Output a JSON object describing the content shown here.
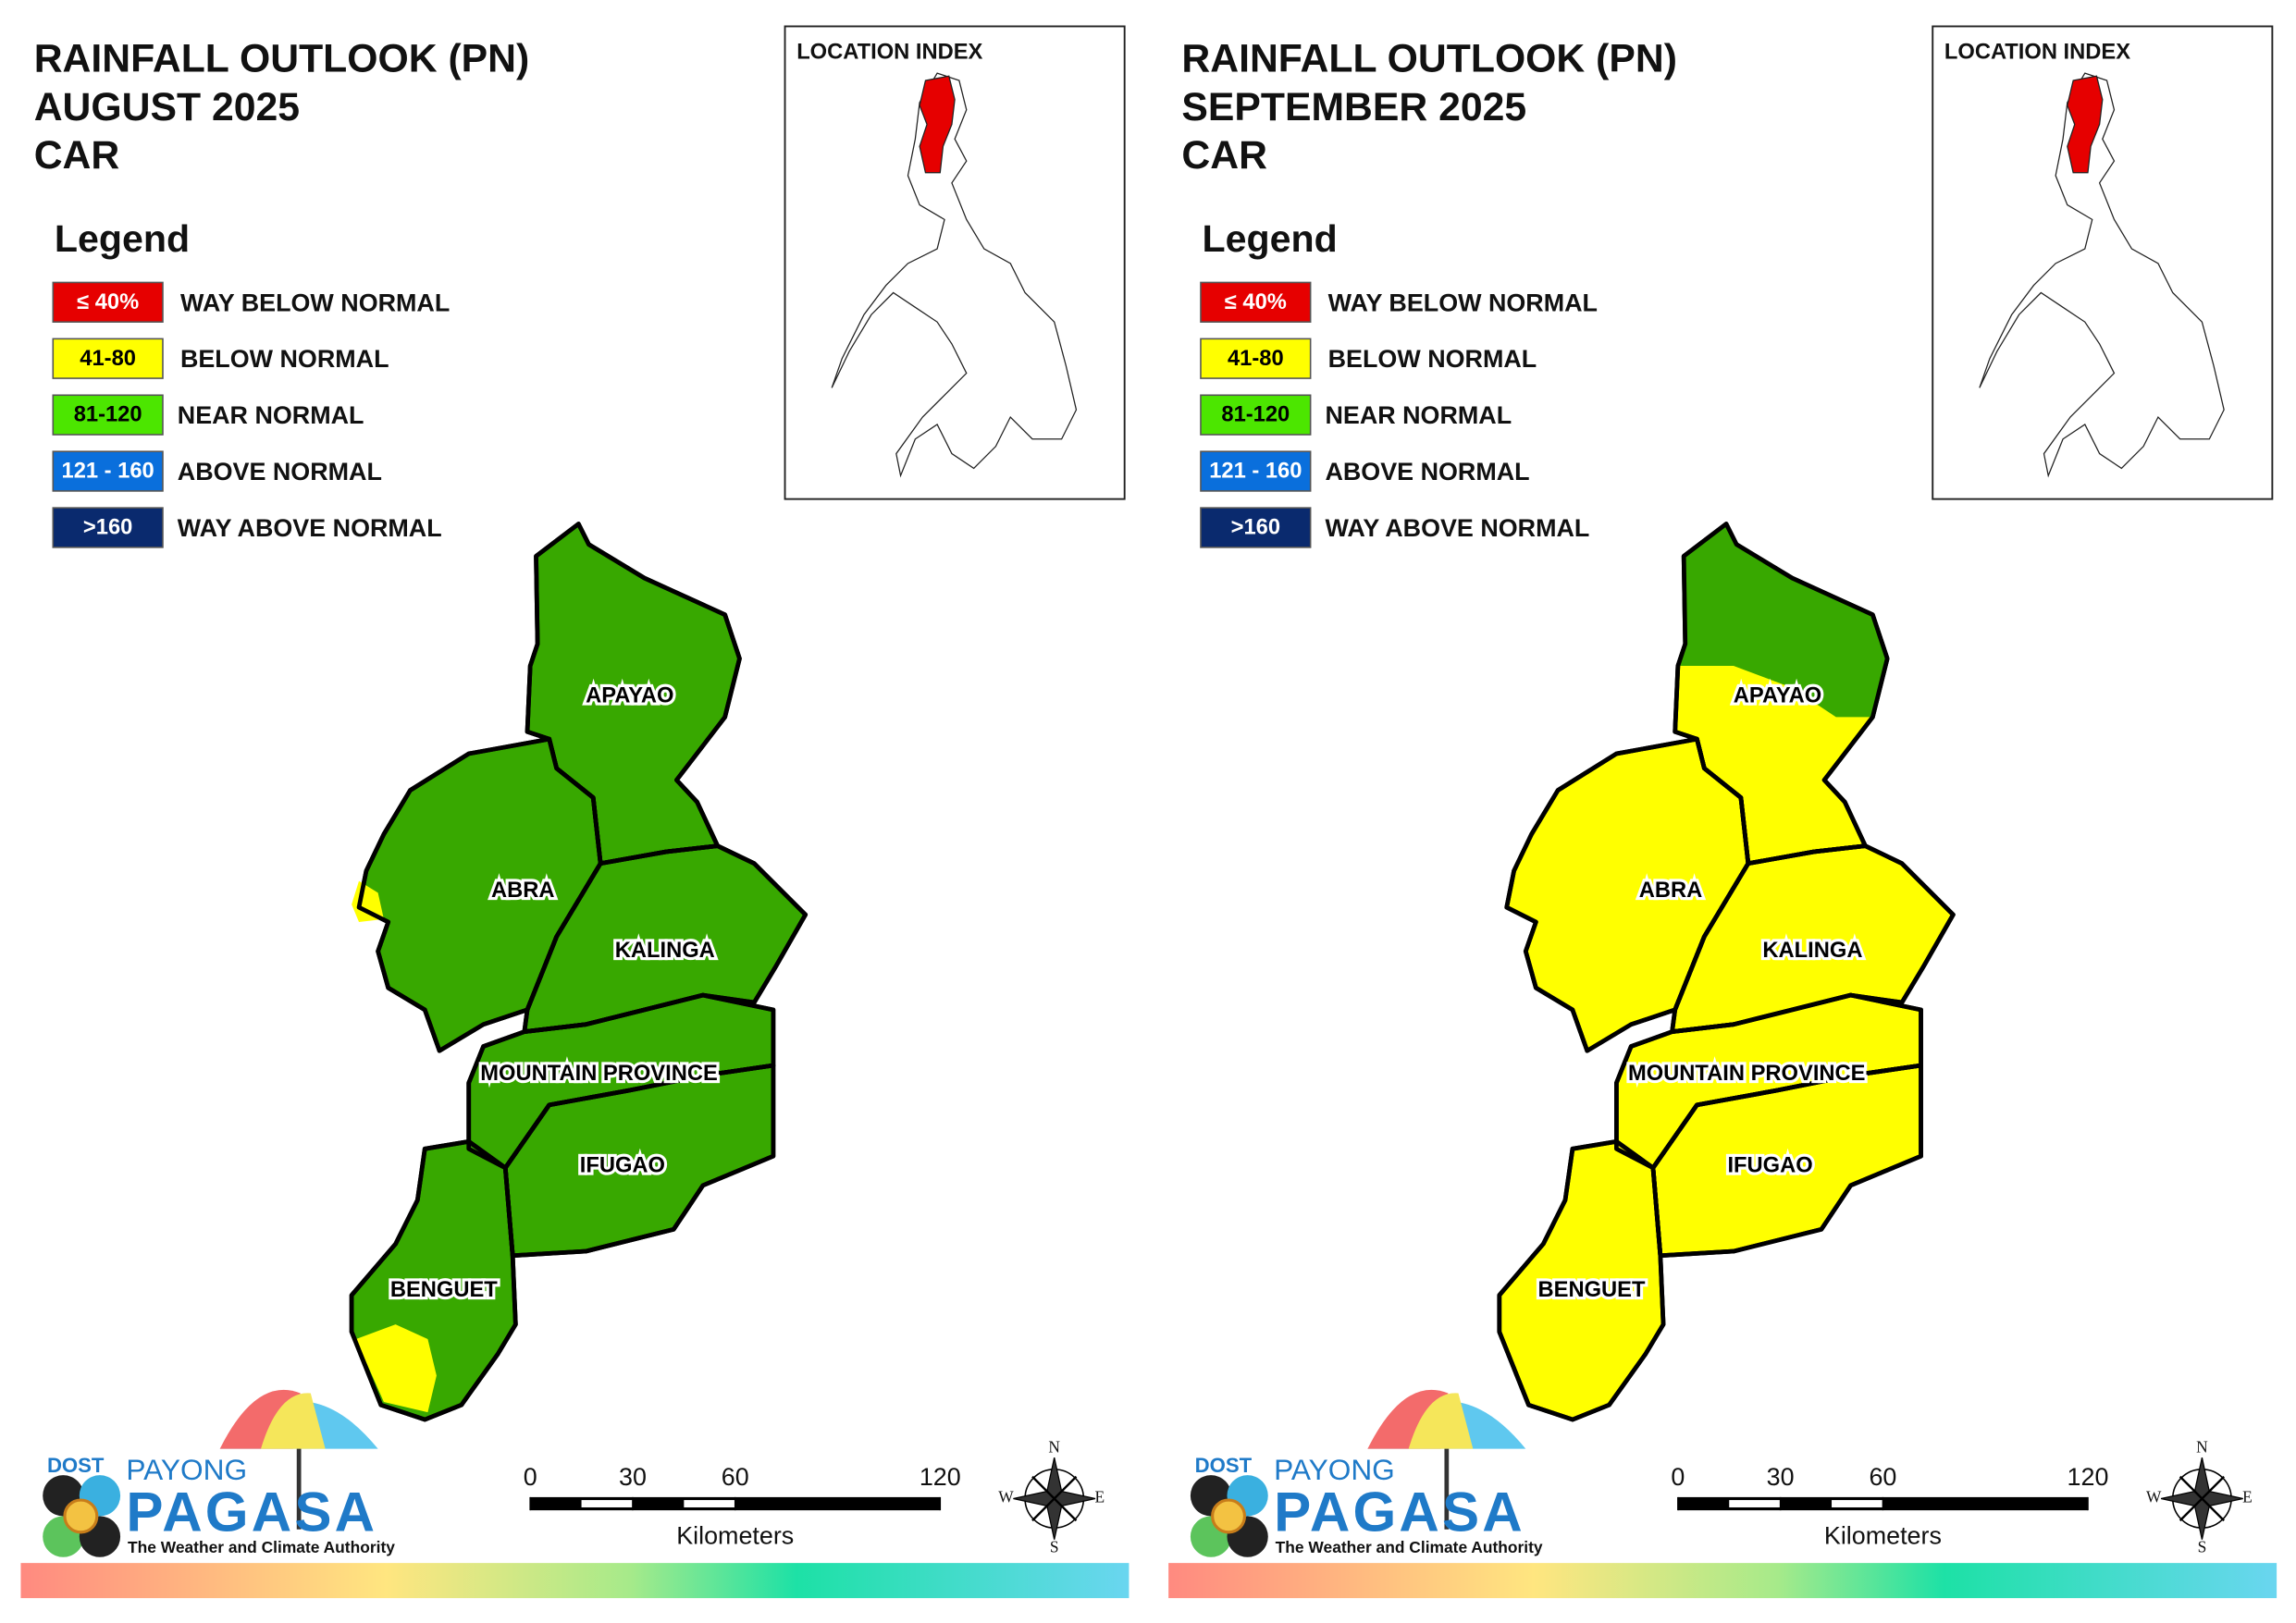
{
  "panels": [
    {
      "title_lines": [
        "RAINFALL OUTLOOK (PN)",
        "AUGUST 2025",
        "CAR"
      ],
      "legend": {
        "title": "Legend",
        "items": [
          {
            "range": "≤ 40%",
            "label": "WAY BELOW NORMAL",
            "color": "#e60000"
          },
          {
            "range": "41-80",
            "label": "BELOW NORMAL",
            "color": "#ffff00"
          },
          {
            "range": "81-120",
            "label": "NEAR NORMAL",
            "color": "#4ce600"
          },
          {
            "range": "121 - 160",
            "label": "ABOVE NORMAL",
            "color": "#0a6fdc"
          },
          {
            "range": ">160",
            "label": "WAY ABOVE NORMAL",
            "color": "#0a2a6e"
          }
        ]
      },
      "location_index": "LOCATION INDEX",
      "provinces": [
        {
          "name": "APAYAO",
          "color": "#38a800"
        },
        {
          "name": "ABRA",
          "color": "#38a800"
        },
        {
          "name": "KALINGA",
          "color": "#38a800"
        },
        {
          "name": "MOUNTAIN PROVINCE",
          "color": "#38a800"
        },
        {
          "name": "IFUGAO",
          "color": "#38a800"
        },
        {
          "name": "BENGUET",
          "color": "#38a800"
        }
      ],
      "scale": {
        "ticks": [
          0,
          30,
          60,
          120
        ],
        "unit": "Kilometers"
      },
      "compass": {
        "n": "N",
        "e": "E",
        "s": "S",
        "w": "W"
      },
      "logo": {
        "agency": "DOST",
        "brand_top": "PAYONG",
        "brand": "PAGASA",
        "tagline": "The Weather and Climate Authority"
      }
    },
    {
      "title_lines": [
        "RAINFALL OUTLOOK (PN)",
        "SEPTEMBER 2025",
        "CAR"
      ],
      "legend": {
        "title": "Legend",
        "items": [
          {
            "range": "≤ 40%",
            "label": "WAY BELOW NORMAL",
            "color": "#e60000"
          },
          {
            "range": "41-80",
            "label": "BELOW NORMAL",
            "color": "#ffff00"
          },
          {
            "range": "81-120",
            "label": "NEAR NORMAL",
            "color": "#4ce600"
          },
          {
            "range": "121 - 160",
            "label": "ABOVE NORMAL",
            "color": "#0a6fdc"
          },
          {
            "range": ">160",
            "label": "WAY ABOVE NORMAL",
            "color": "#0a2a6e"
          }
        ]
      },
      "location_index": "LOCATION INDEX",
      "provinces": [
        {
          "name": "APAYAO",
          "color": "#ffff00"
        },
        {
          "name": "ABRA",
          "color": "#ffff00"
        },
        {
          "name": "KALINGA",
          "color": "#ffff00"
        },
        {
          "name": "MOUNTAIN PROVINCE",
          "color": "#ffff00"
        },
        {
          "name": "IFUGAO",
          "color": "#ffff00"
        },
        {
          "name": "BENGUET",
          "color": "#ffff00"
        }
      ],
      "scale": {
        "ticks": [
          0,
          30,
          60,
          120
        ],
        "unit": "Kilometers"
      },
      "compass": {
        "n": "N",
        "e": "E",
        "s": "S",
        "w": "W"
      },
      "logo": {
        "agency": "DOST",
        "brand_top": "PAYONG",
        "brand": "PAGASA",
        "tagline": "The Weather and Climate Authority"
      }
    }
  ]
}
